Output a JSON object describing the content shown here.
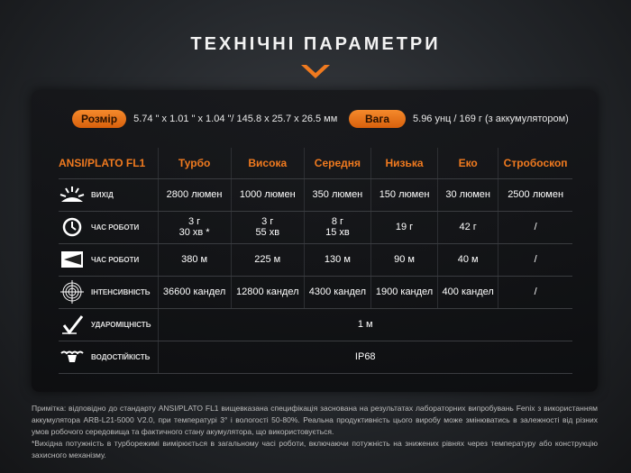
{
  "title": "ТЕХНІЧНІ ПАРАМЕТРИ",
  "accent": "#f07a1f",
  "size": {
    "label": "Розмір",
    "value": "5.74 \" x 1.01 \" x 1.04 \"/ 145.8 x 25.7 x 26.5 мм"
  },
  "weight": {
    "label": "Вага",
    "value": "5.96 унц / 169 г (з аккумулятором)"
  },
  "table": {
    "headers": [
      "ANSI/PLATO FL1",
      "Турбо",
      "Висока",
      "Середня",
      "Низька",
      "Еко",
      "Стробоскоп"
    ],
    "rows": [
      {
        "icon": "light-output-icon",
        "label": "ВИХІД",
        "cells": [
          "2800 люмен",
          "1000 люмен",
          "350 люмен",
          "150 люмен",
          "30 люмен",
          "2500 люмен"
        ]
      },
      {
        "icon": "clock-icon",
        "label": "ЧАС РОБОТИ",
        "cells": [
          "3 г\n30 хв *",
          "3 г\n55 хв",
          "8 г\n15 хв",
          "19 г",
          "42 г",
          "/"
        ]
      },
      {
        "icon": "beam-distance-icon",
        "label": "ЧАС РОБОТИ",
        "cells": [
          "380 м",
          "225 м",
          "130 м",
          "90 м",
          "40 м",
          "/"
        ]
      },
      {
        "icon": "target-intensity-icon",
        "label": "ІНТЕНСИВНІСТЬ",
        "cells": [
          "36600 кандел",
          "12800 кандел",
          "4300 кандел",
          "1900 кандел",
          "400 кандел",
          "/"
        ]
      },
      {
        "icon": "impact-resistance-icon",
        "label": "УДАРОМІЦНІСТЬ",
        "span": "1 м"
      },
      {
        "icon": "water-resistance-icon",
        "label": "ВОДОСТІЙКІСТЬ",
        "span": "IP68"
      }
    ]
  },
  "notes": [
    "Примітка: відповідно до стандарту ANSI/PLATO FL1 вищевказана специфікація заснована на результатах лабораторних випробувань Fenix з використанням аккумулятора ARB-L21-5000 V2.0, при температурі 3° і вологості 50-80%. Реальна продуктивність цього виробу може змінюватись в залежності від різних умов робочого середовища та фактичного стану акумулятора, що використовується.",
    "*Вихідна потужність в турборежимі вимірюється в загальному часі роботи, включаючи потужність на знижених рівнях через температуру або конструкцію захисного механізму."
  ]
}
